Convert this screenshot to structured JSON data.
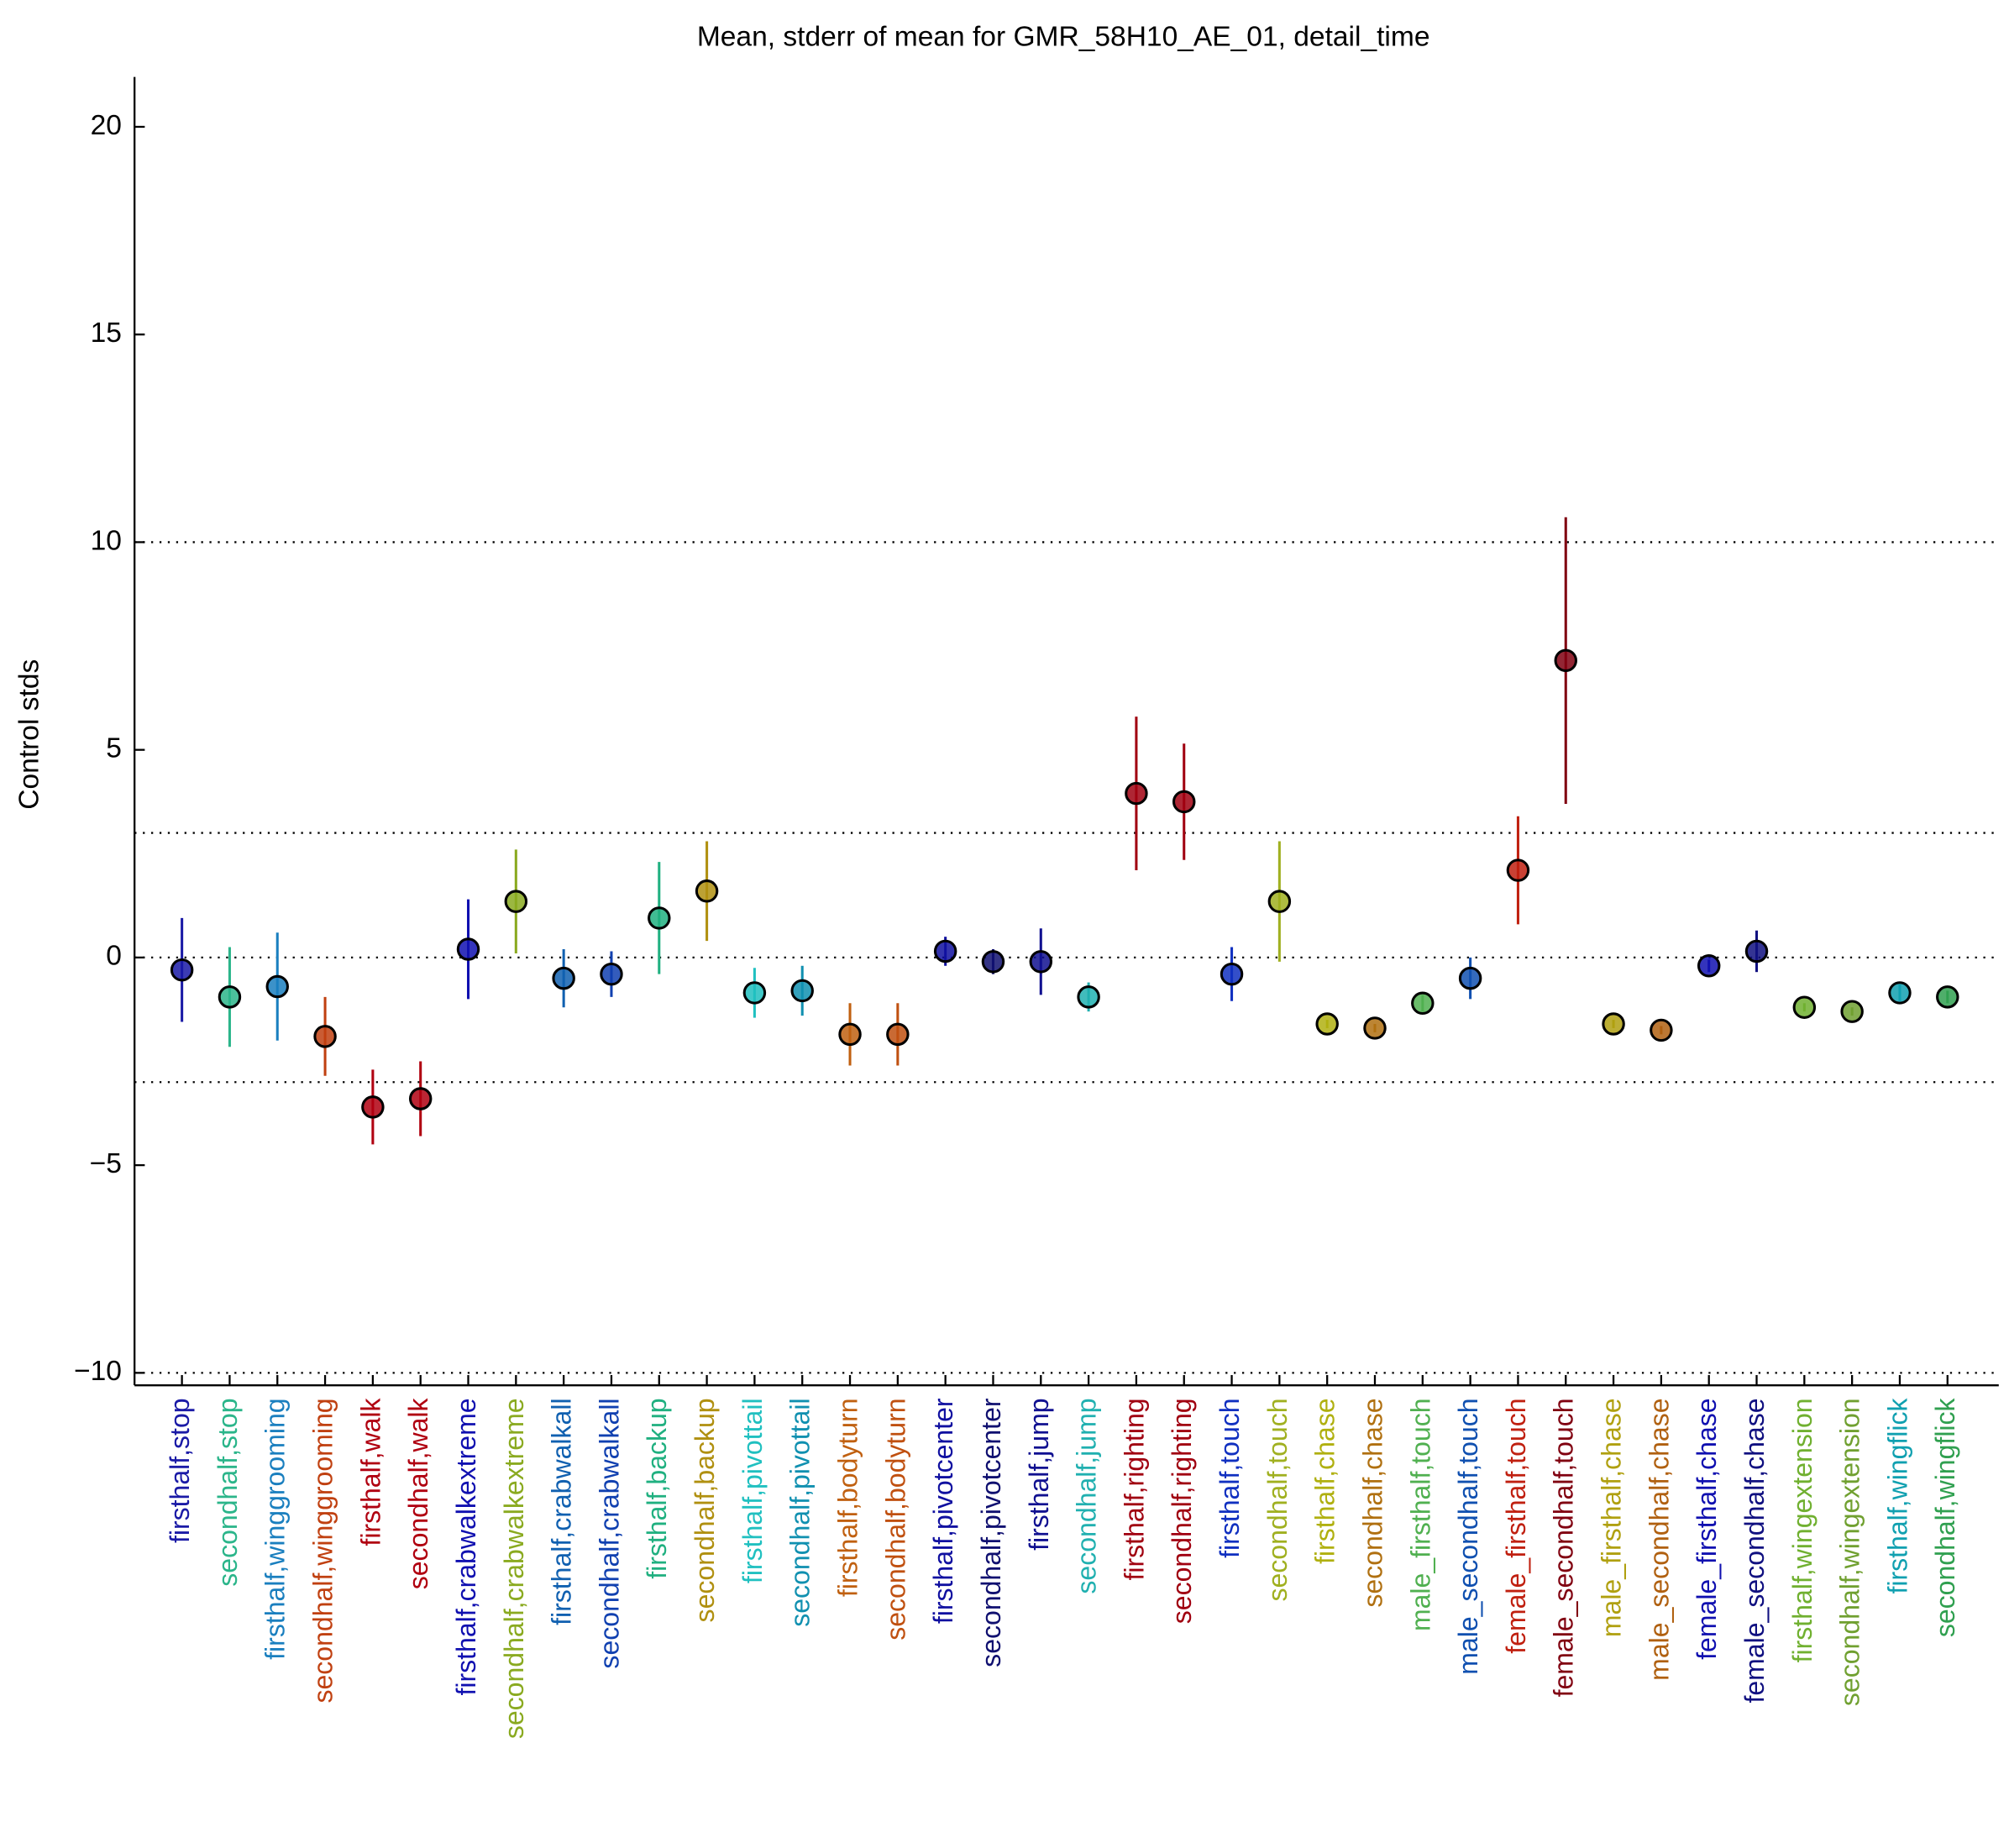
{
  "chart_data": {
    "type": "errorbar",
    "title": "Mean, stderr of mean for GMR_58H10_AE_01, detail_time",
    "y_label": "Control stds",
    "categories": [
      "firsthalf,stop",
      "secondhalf,stop",
      "firsthalf,winggrooming",
      "secondhalf,winggrooming",
      "firsthalf,walk",
      "secondhalf,walk",
      "firsthalf,crabwalkextreme",
      "secondhalf,crabwalkextreme",
      "firsthalf,crabwalkall",
      "secondhalf,crabwalkall",
      "firsthalf,backup",
      "secondhalf,backup",
      "firsthalf,pivottail",
      "secondhalf,pivottail",
      "firsthalf,bodyturn",
      "secondhalf,bodyturn",
      "firsthalf,pivotcenter",
      "secondhalf,pivotcenter",
      "firsthalf,jump",
      "secondhalf,jump",
      "firsthalf,righting",
      "secondhalf,righting",
      "firsthalf,touch",
      "secondhalf,touch",
      "firsthalf,chase",
      "secondhalf,chase",
      "male_firsthalf,touch",
      "male_secondhalf,touch",
      "female_firsthalf,touch",
      "female_secondhalf,touch",
      "male_firsthalf,chase",
      "male_secondhalf,chase",
      "female_firsthalf,chase",
      "female_secondhalf,chase",
      "firsthalf,wingextension",
      "secondhalf,wingextension",
      "firsthalf,wingflick",
      "secondhalf,wingflick"
    ],
    "values": [
      -0.3,
      -0.95,
      -0.7,
      -1.9,
      -3.6,
      -3.4,
      0.2,
      1.35,
      -0.5,
      -0.4,
      0.95,
      1.6,
      -0.85,
      -0.8,
      -1.85,
      -1.85,
      0.15,
      -0.1,
      -0.1,
      -0.95,
      3.95,
      3.75,
      -0.4,
      1.35,
      -1.6,
      -1.7,
      -1.1,
      -0.5,
      2.1,
      7.15,
      -1.6,
      -1.75,
      -0.2,
      0.15,
      -1.2,
      -1.3,
      -0.85,
      -0.95
    ],
    "errors": [
      1.25,
      1.2,
      1.3,
      0.95,
      0.9,
      0.9,
      1.2,
      1.25,
      0.7,
      0.55,
      1.35,
      1.2,
      0.6,
      0.6,
      0.75,
      0.75,
      0.35,
      0.3,
      0.8,
      0.35,
      1.85,
      1.4,
      0.65,
      1.45,
      0.1,
      0.1,
      0.2,
      0.5,
      1.3,
      3.45,
      0.1,
      0.1,
      0.15,
      0.5,
      0.1,
      0.1,
      0.2,
      0.15
    ],
    "colors": [
      "#1a1aa6",
      "#2bb58a",
      "#1a7fbf",
      "#c04010",
      "#b00010",
      "#b00010",
      "#1010b0",
      "#8aaa20",
      "#1060b0",
      "#1040b0",
      "#20b080",
      "#b09010",
      "#20c0c0",
      "#1090b0",
      "#c06010",
      "#c05010",
      "#1010a0",
      "#101070",
      "#101090",
      "#20b0b0",
      "#a00010",
      "#a00010",
      "#1030c0",
      "#a0b020",
      "#b0b010",
      "#b07010",
      "#50b050",
      "#1050b0",
      "#c02010",
      "#800010",
      "#b0a010",
      "#b06010",
      "#1010b0",
      "#101080",
      "#70b030",
      "#70a030",
      "#10a0b0",
      "#30a050"
    ],
    "ylim": [
      -10.3,
      21.2
    ],
    "yticks": [
      {
        "value": -10,
        "label": "−10"
      },
      {
        "value": -5,
        "label": "−5"
      },
      0,
      5,
      10,
      15,
      20
    ],
    "reference_lines": [
      -10,
      -3,
      0,
      3,
      10
    ]
  }
}
